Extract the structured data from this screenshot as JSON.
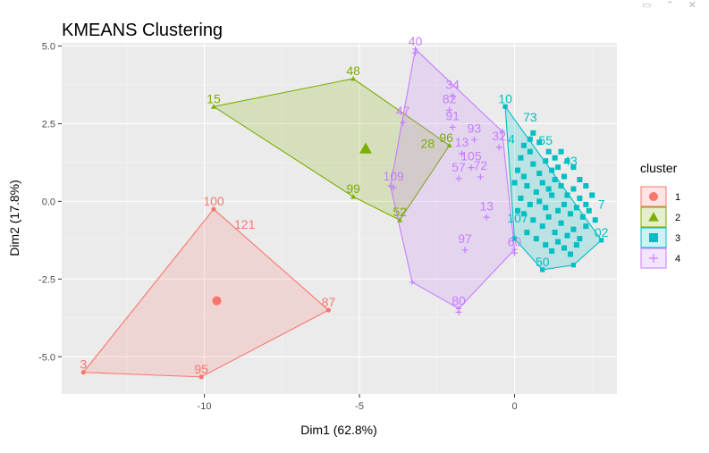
{
  "window_controls": {
    "pin": "▭",
    "expand": "⌃",
    "close": "✕"
  },
  "chart_data": {
    "type": "scatter",
    "title": "KMEANS Clustering",
    "xlabel": "Dim1 (62.8%)",
    "ylabel": "Dim2 (17.8%)",
    "xlim": [
      -14.6,
      3.3
    ],
    "ylim": [
      -6.2,
      5.1
    ],
    "xticks": [
      -10,
      -5,
      0
    ],
    "xtick_labels": [
      "-10",
      "-5",
      "0"
    ],
    "yticks": [
      -5,
      -2.5,
      0,
      2.5,
      5
    ],
    "ytick_labels": [
      "-5.0",
      "-2.5",
      "0.0",
      "2.5",
      "5.0"
    ],
    "grid": true,
    "legend": {
      "title": "cluster",
      "position": "right"
    },
    "series": [
      {
        "name": "1",
        "color": "#F8766D",
        "shape": "circle",
        "centroid": [
          -9.6,
          -3.2
        ],
        "hull": [
          [
            -13.9,
            -5.5
          ],
          [
            -9.7,
            -0.25
          ],
          [
            -6.0,
            -3.5
          ],
          [
            -10.1,
            -5.65
          ]
        ],
        "labeled": [
          {
            "label": "3",
            "x": -13.9,
            "y": -5.5
          },
          {
            "label": "100",
            "x": -9.7,
            "y": -0.25
          },
          {
            "label": "121",
            "x": -8.7,
            "y": -1.0
          },
          {
            "label": "87",
            "x": -6.0,
            "y": -3.5
          },
          {
            "label": "95",
            "x": -10.1,
            "y": -5.65
          }
        ]
      },
      {
        "name": "2",
        "color": "#7CAE00",
        "shape": "triangle",
        "centroid": [
          -4.8,
          1.7
        ],
        "hull": [
          [
            -9.7,
            3.05
          ],
          [
            -5.2,
            3.95
          ],
          [
            -2.1,
            1.8
          ],
          [
            -3.7,
            -0.6
          ],
          [
            -5.2,
            0.15
          ]
        ],
        "labeled": [
          {
            "label": "15",
            "x": -9.7,
            "y": 3.05
          },
          {
            "label": "48",
            "x": -5.2,
            "y": 3.95
          },
          {
            "label": "96",
            "x": -2.2,
            "y": 1.8
          },
          {
            "label": "28",
            "x": -2.8,
            "y": 1.6
          },
          {
            "label": "99",
            "x": -5.2,
            "y": 0.15
          },
          {
            "label": "52",
            "x": -3.7,
            "y": -0.6
          }
        ]
      },
      {
        "name": "3",
        "color": "#00BFC4",
        "shape": "square",
        "hull": [
          [
            -0.3,
            3.05
          ],
          [
            2.8,
            -1.25
          ],
          [
            1.9,
            -2.05
          ],
          [
            0.9,
            -2.2
          ],
          [
            0.0,
            -1.2
          ]
        ],
        "labeled": [
          {
            "label": "10",
            "x": -0.3,
            "y": 3.05
          },
          {
            "label": "73",
            "x": 0.5,
            "y": 2.45
          },
          {
            "label": "55",
            "x": 1.0,
            "y": 1.7
          },
          {
            "label": "4",
            "x": -0.1,
            "y": 1.75
          },
          {
            "label": "43",
            "x": 1.8,
            "y": 1.05
          },
          {
            "label": "02",
            "x": 2.8,
            "y": -1.25
          },
          {
            "label": "7",
            "x": 2.8,
            "y": -0.35
          },
          {
            "label": "50",
            "x": 0.9,
            "y": -2.2
          },
          {
            "label": "107",
            "x": 0.1,
            "y": -0.8
          }
        ],
        "points": [
          [
            0.2,
            1.4
          ],
          [
            0.5,
            1.6
          ],
          [
            0.1,
            1.0
          ],
          [
            0.3,
            0.8
          ],
          [
            0.6,
            1.2
          ],
          [
            0.8,
            0.9
          ],
          [
            1.0,
            1.3
          ],
          [
            1.2,
            1.0
          ],
          [
            1.4,
            1.1
          ],
          [
            1.6,
            0.8
          ],
          [
            0.4,
            0.5
          ],
          [
            0.7,
            0.3
          ],
          [
            0.9,
            0.6
          ],
          [
            1.1,
            0.4
          ],
          [
            1.3,
            0.7
          ],
          [
            1.5,
            0.5
          ],
          [
            1.7,
            0.2
          ],
          [
            1.9,
            0.4
          ],
          [
            2.1,
            0.1
          ],
          [
            2.3,
            -0.1
          ],
          [
            0.2,
            0.1
          ],
          [
            0.5,
            -0.1
          ],
          [
            0.8,
            0.0
          ],
          [
            1.0,
            -0.2
          ],
          [
            1.2,
            0.2
          ],
          [
            1.4,
            -0.3
          ],
          [
            1.6,
            -0.1
          ],
          [
            1.8,
            -0.4
          ],
          [
            2.0,
            -0.2
          ],
          [
            2.2,
            -0.5
          ],
          [
            2.4,
            -0.3
          ],
          [
            2.6,
            -0.6
          ],
          [
            0.3,
            -0.4
          ],
          [
            0.6,
            -0.6
          ],
          [
            0.9,
            -0.8
          ],
          [
            1.1,
            -0.5
          ],
          [
            1.3,
            -1.0
          ],
          [
            1.5,
            -0.7
          ],
          [
            1.7,
            -1.1
          ],
          [
            1.9,
            -0.9
          ],
          [
            2.1,
            -1.2
          ],
          [
            2.3,
            -0.8
          ],
          [
            0.4,
            -1.0
          ],
          [
            0.7,
            -1.2
          ],
          [
            1.0,
            -1.4
          ],
          [
            1.2,
            -1.6
          ],
          [
            1.4,
            -1.3
          ],
          [
            1.6,
            -1.5
          ],
          [
            1.8,
            -1.7
          ],
          [
            2.0,
            -1.4
          ],
          [
            0.5,
            2.0
          ],
          [
            0.8,
            1.9
          ],
          [
            0.3,
            1.8
          ],
          [
            1.1,
            1.6
          ],
          [
            1.3,
            1.4
          ],
          [
            1.7,
            1.3
          ],
          [
            1.9,
            1.1
          ],
          [
            2.1,
            0.7
          ],
          [
            2.3,
            0.5
          ],
          [
            2.5,
            0.2
          ],
          [
            0.1,
            -0.3
          ],
          [
            0.0,
            0.6
          ],
          [
            0.6,
            2.2
          ],
          [
            1.5,
            1.6
          ]
        ]
      },
      {
        "name": "4",
        "color": "#C77CFF",
        "shape": "plus",
        "hull": [
          [
            -3.2,
            4.9
          ],
          [
            -0.4,
            2.25
          ],
          [
            0.0,
            -1.55
          ],
          [
            -1.8,
            -3.45
          ],
          [
            -3.3,
            -2.6
          ],
          [
            -4.0,
            0.5
          ]
        ],
        "labeled": [
          {
            "label": "40",
            "x": -3.2,
            "y": 4.9
          },
          {
            "label": "34",
            "x": -2.0,
            "y": 3.5
          },
          {
            "label": "82",
            "x": -2.1,
            "y": 3.05
          },
          {
            "label": "47",
            "x": -3.6,
            "y": 2.65
          },
          {
            "label": "91",
            "x": -2.0,
            "y": 2.5
          },
          {
            "label": "93",
            "x": -1.3,
            "y": 2.1
          },
          {
            "label": "32",
            "x": -0.5,
            "y": 1.85
          },
          {
            "label": "13",
            "x": -1.7,
            "y": 1.65
          },
          {
            "label": "105",
            "x": -1.4,
            "y": 1.2
          },
          {
            "label": "57",
            "x": -1.8,
            "y": 0.85
          },
          {
            "label": "72",
            "x": -1.1,
            "y": 0.9
          },
          {
            "label": "109",
            "x": -3.9,
            "y": 0.55
          },
          {
            "label": "13",
            "x": -0.9,
            "y": -0.4
          },
          {
            "label": "97",
            "x": -1.6,
            "y": -1.45
          },
          {
            "label": "60",
            "x": 0.0,
            "y": -1.55
          },
          {
            "label": "80",
            "x": -1.8,
            "y": -3.45
          }
        ]
      }
    ]
  }
}
